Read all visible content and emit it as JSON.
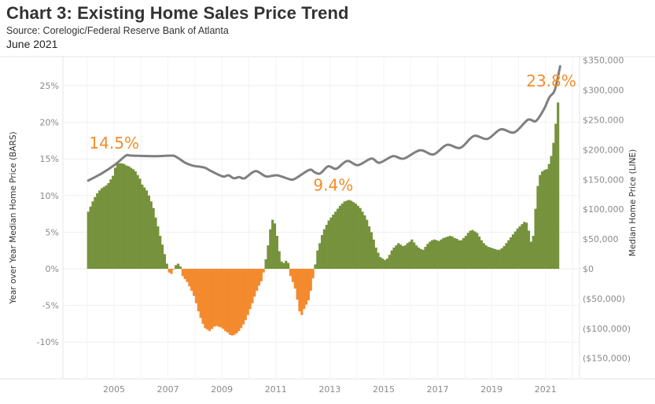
{
  "header": {
    "title": "Chart 3: Existing Home Sales Price Trend",
    "source": "Source: Corelogic/Federal Reserve Bank of Atlanta",
    "date": "June 2021"
  },
  "colors": {
    "positive_bar": "#76923c",
    "negative_bar": "#f48a2e",
    "line": "#7f7f7f",
    "annotation": "#f28e2b",
    "grid": "#efefef"
  },
  "chart_data": {
    "type": "bar+line",
    "title": "Chart 3: Existing Home Sales Price Trend",
    "xlabel": "",
    "xlim": [
      2004.0,
      2021.5
    ],
    "x_ticks": [
      2005,
      2007,
      2009,
      2011,
      2013,
      2015,
      2017,
      2019,
      2021
    ],
    "x_tick_labels": [
      "2005",
      "2007",
      "2009",
      "2011",
      "2013",
      "2015",
      "2017",
      "2019",
      "2021"
    ],
    "left_axis": {
      "label": "Year over Year Median Home Price (BARS)",
      "ylim": [
        -14,
        29
      ],
      "ticks": [
        25,
        20,
        15,
        10,
        5,
        0,
        -5,
        -10
      ],
      "tick_labels": [
        "25%",
        "20%",
        "15%",
        "10%",
        "5%",
        "0%",
        "-5%",
        "-10%"
      ]
    },
    "right_axis": {
      "label": "Median Home Price (LINE)",
      "ylim": [
        -175000,
        375000
      ],
      "ticks": [
        350000,
        300000,
        250000,
        200000,
        150000,
        100000,
        50000,
        0,
        -50000,
        -100000,
        -150000
      ],
      "tick_labels": [
        "$350,000",
        "$300,000",
        "$250,000",
        "$200,000",
        "$150,000",
        "$100,000",
        "$50,000",
        "$0",
        "($50,000)",
        "($100,000)",
        "($150,000)"
      ]
    },
    "grid": true,
    "series": [
      {
        "name": "Year over Year Median Home Price",
        "kind": "bar",
        "axis": "left",
        "frequency": "monthly",
        "x": [
          2004.0,
          2004.1,
          2004.2,
          2004.3,
          2004.5,
          2004.7,
          2004.9,
          2005.0,
          2005.1,
          2005.3,
          2005.5,
          2005.7,
          2005.9,
          2006.0,
          2006.2,
          2006.4,
          2006.6,
          2006.8,
          2006.95,
          2007.0,
          2007.1,
          2007.2,
          2007.3,
          2007.4,
          2007.5,
          2007.7,
          2007.9,
          2008.1,
          2008.3,
          2008.5,
          2008.7,
          2008.9,
          2009.1,
          2009.3,
          2009.5,
          2009.7,
          2009.9,
          2010.1,
          2010.3,
          2010.45,
          2010.55,
          2010.7,
          2010.8,
          2010.9,
          2011.0,
          2011.1,
          2011.2,
          2011.3,
          2011.4,
          2011.45,
          2011.5,
          2011.7,
          2011.8,
          2011.9,
          2012.0,
          2012.2,
          2012.3,
          2012.4,
          2012.5,
          2012.7,
          2012.9,
          2013.1,
          2013.3,
          2013.5,
          2013.7,
          2013.9,
          2014.1,
          2014.3,
          2014.5,
          2014.7,
          2014.85,
          2015.0,
          2015.1,
          2015.3,
          2015.5,
          2015.7,
          2015.9,
          2016.0,
          2016.2,
          2016.4,
          2016.6,
          2016.8,
          2017.0,
          2017.2,
          2017.4,
          2017.6,
          2017.8,
          2018.0,
          2018.2,
          2018.4,
          2018.6,
          2018.8,
          2019.0,
          2019.2,
          2019.4,
          2019.6,
          2019.8,
          2020.0,
          2020.2,
          2020.3,
          2020.4,
          2020.5,
          2020.6,
          2020.7,
          2020.85,
          2021.0,
          2021.1,
          2021.2,
          2021.3,
          2021.45
        ],
        "values": [
          7.8,
          8.7,
          9.5,
          10.2,
          11.0,
          11.5,
          12.5,
          13.8,
          14.5,
          14.3,
          14.0,
          13.5,
          12.5,
          11.5,
          10.5,
          8.5,
          5.5,
          2.5,
          0.2,
          -0.5,
          -0.8,
          0.3,
          0.8,
          0.5,
          -1.0,
          -2.0,
          -3.5,
          -6.0,
          -8.0,
          -8.5,
          -7.8,
          -8.0,
          -8.5,
          -9.2,
          -8.8,
          -8.0,
          -6.5,
          -4.5,
          -2.5,
          -1.5,
          0.5,
          4.0,
          6.8,
          6.5,
          4.5,
          2.0,
          0.5,
          1.2,
          1.0,
          0.3,
          -1.0,
          -3.0,
          -5.5,
          -6.5,
          -5.5,
          -4.0,
          -2.0,
          0.2,
          2.5,
          5.0,
          6.5,
          7.5,
          8.5,
          9.2,
          9.4,
          9.0,
          8.2,
          7.0,
          5.0,
          2.5,
          1.5,
          1.2,
          1.5,
          2.8,
          3.5,
          3.0,
          3.7,
          4.0,
          3.0,
          2.5,
          3.5,
          4.0,
          3.8,
          4.3,
          4.5,
          4.2,
          3.8,
          4.5,
          5.4,
          5.0,
          3.8,
          3.0,
          2.8,
          2.5,
          3.0,
          4.0,
          5.0,
          5.8,
          6.5,
          6.0,
          3.5,
          4.5,
          9.0,
          12.5,
          13.4,
          13.6,
          14.5,
          15.8,
          18.7,
          23.8
        ]
      },
      {
        "name": "Median Home Price",
        "kind": "line",
        "axis": "right",
        "x": [
          2004.0,
          2004.5,
          2005.0,
          2005.4,
          2005.6,
          2006.5,
          2007.1,
          2007.3,
          2007.6,
          2007.9,
          2008.3,
          2008.6,
          2009.0,
          2009.2,
          2009.4,
          2009.6,
          2009.8,
          2010.2,
          2010.6,
          2011.0,
          2011.5,
          2011.7,
          2012.2,
          2012.4,
          2012.6,
          2012.9,
          2013.2,
          2013.6,
          2014.0,
          2014.5,
          2014.8,
          2015.3,
          2015.7,
          2016.3,
          2016.8,
          2017.3,
          2017.8,
          2018.3,
          2018.8,
          2019.3,
          2019.8,
          2020.3,
          2020.6,
          2020.9,
          2021.1,
          2021.3,
          2021.5
        ],
        "values": [
          148000,
          160000,
          175000,
          190000,
          190000,
          189000,
          190000,
          187000,
          178000,
          173000,
          170000,
          163000,
          155000,
          157000,
          152000,
          154000,
          152000,
          164000,
          155000,
          157000,
          150000,
          152000,
          166000,
          162000,
          160000,
          172000,
          168000,
          181000,
          174000,
          185000,
          178000,
          189000,
          185000,
          199000,
          192000,
          208000,
          203000,
          223000,
          218000,
          234000,
          229000,
          250000,
          248000,
          268000,
          288000,
          300000,
          340000
        ]
      }
    ],
    "annotations": [
      {
        "text": "14.5%",
        "x": 2005.1,
        "y": 14.5
      },
      {
        "text": "9.4%",
        "x": 2013.7,
        "y": 9.4
      },
      {
        "text": "23.8%",
        "x": 2021.45,
        "y": 23.8
      }
    ]
  }
}
